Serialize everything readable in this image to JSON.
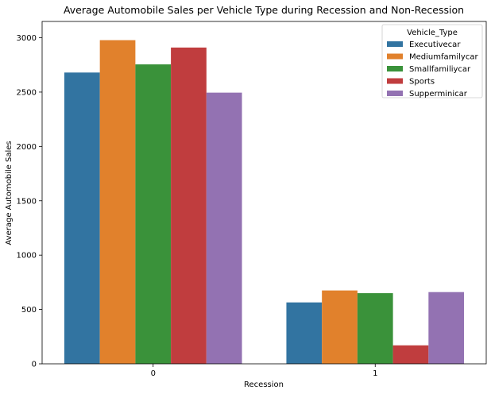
{
  "chart_data": {
    "type": "bar",
    "title": "Average Automobile Sales per Vehicle Type during Recession and Non-Recession",
    "xlabel": "Recession",
    "ylabel": "Average Automobile Sales",
    "categories": [
      "0",
      "1"
    ],
    "ylim": [
      0,
      3150
    ],
    "yticks": [
      0,
      500,
      1000,
      1500,
      2000,
      2500,
      3000
    ],
    "grid": false,
    "legend": {
      "title": "Vehicle_Type",
      "placement": "top-right"
    },
    "series": [
      {
        "name": "Executivecar",
        "color": "#3274a1",
        "values": [
          2680,
          565
        ]
      },
      {
        "name": "Mediumfamilycar",
        "color": "#e1812c",
        "values": [
          2978,
          675
        ]
      },
      {
        "name": "Smallfamiliycar",
        "color": "#3a923a",
        "values": [
          2755,
          650
        ]
      },
      {
        "name": "Sports",
        "color": "#c03d3e",
        "values": [
          2910,
          170
        ]
      },
      {
        "name": "Supperminicar",
        "color": "#9372b2",
        "values": [
          2495,
          660
        ]
      }
    ]
  }
}
